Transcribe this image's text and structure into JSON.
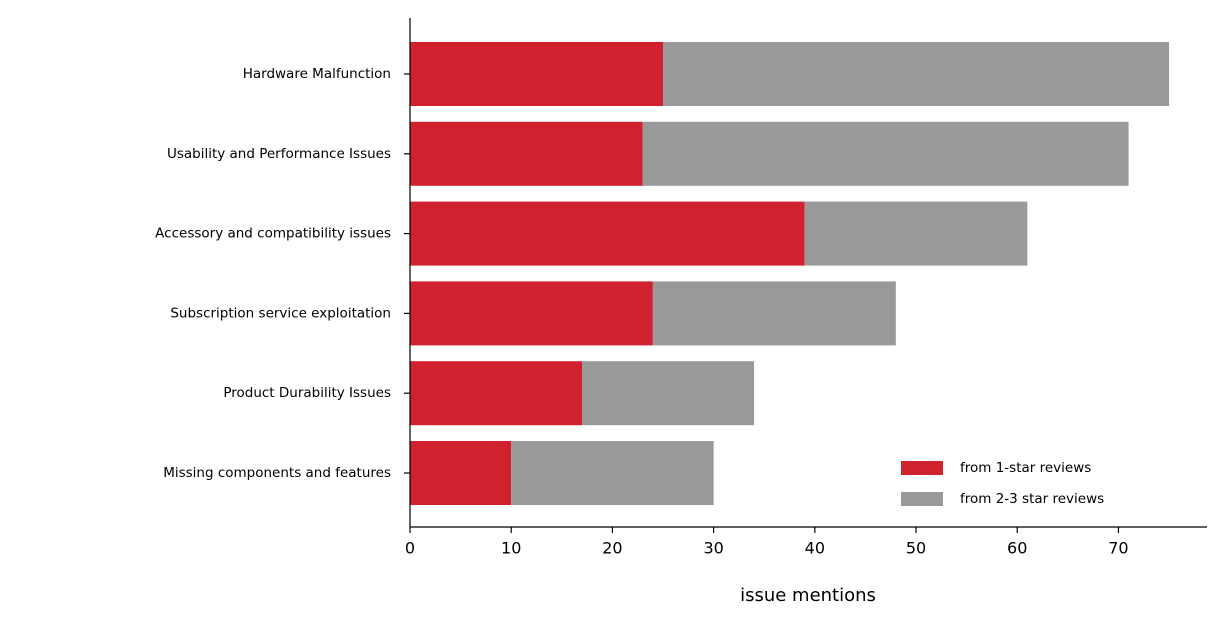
{
  "chart_data": {
    "type": "stacked-barh",
    "categories": [
      "Hardware Malfunction",
      "Usability and Performance Issues",
      "Accessory and compatibility issues",
      "Subscription service exploitation",
      "Product Durability Issues",
      "Missing components and features"
    ],
    "series": [
      {
        "name": "from 1-star reviews",
        "color": "#d0212f",
        "values": [
          25,
          23,
          39,
          24,
          17,
          10
        ]
      },
      {
        "name": "from 2-3 star reviews",
        "color": "#999999",
        "values": [
          50,
          48,
          22,
          24,
          17,
          20
        ]
      }
    ],
    "x_label": "issue mentions",
    "xlim": [
      0,
      78.75
    ],
    "xticks": [
      0,
      10,
      20,
      30,
      40,
      50,
      60,
      70
    ],
    "legend": "lower right"
  }
}
